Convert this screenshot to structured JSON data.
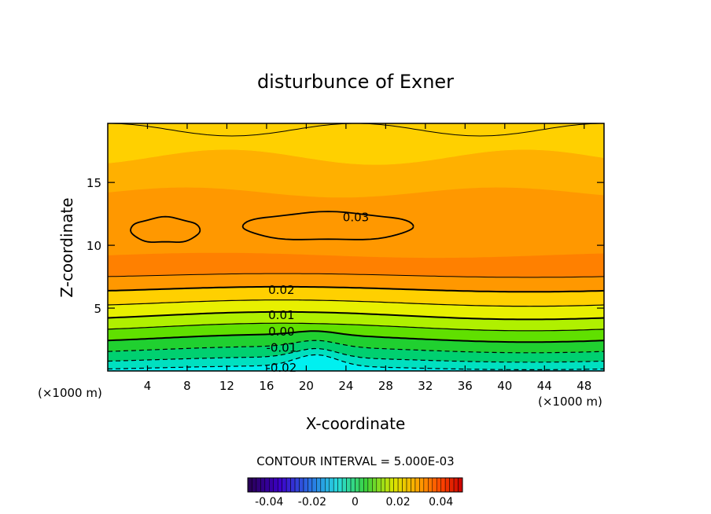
{
  "chart_data": {
    "type": "heatmap",
    "subtype": "filled-contour",
    "title": "disturbunce of Exner",
    "xlabel": "X-coordinate",
    "ylabel": "Z-coordinate",
    "x_unit_left": "(×1000 m)",
    "x_unit_right": "(×1000 m)",
    "xlim": [
      0,
      50
    ],
    "ylim": [
      0,
      19.7
    ],
    "xticks": [
      4,
      8,
      12,
      16,
      20,
      24,
      28,
      32,
      36,
      40,
      44,
      48
    ],
    "xtick_labels": [
      "4",
      "8",
      "12",
      "16",
      "20",
      "24",
      "28",
      "32",
      "36",
      "40",
      "44",
      "48"
    ],
    "yticks": [
      5,
      10,
      15
    ],
    "ytick_labels": [
      "5",
      "10",
      "15"
    ],
    "contour_interval_text": "CONTOUR INTERVAL = 5.000E-03",
    "contour_levels": [
      -0.02,
      -0.015,
      -0.01,
      -0.005,
      0.0,
      0.005,
      0.01,
      0.015,
      0.02,
      0.025,
      0.03
    ],
    "contour_labels": [
      {
        "text": "0.03",
        "x": 25.0,
        "z": 12.3
      },
      {
        "text": "0.02",
        "x": 17.5,
        "z": 6.5
      },
      {
        "text": "0.01",
        "x": 17.5,
        "z": 4.5
      },
      {
        "text": "0.00",
        "x": 17.5,
        "z": 3.2
      },
      {
        "text": "-0.01",
        "x": 17.5,
        "z": 1.9
      },
      {
        "text": "-0.02",
        "x": 17.5,
        "z": 0.3
      }
    ],
    "colorbar": {
      "range": [
        -0.05,
        0.05
      ],
      "tick_values": [
        -0.04,
        -0.02,
        0,
        0.02,
        0.04
      ],
      "tick_labels": [
        "-0.04",
        "-0.02",
        "0",
        "0.02",
        "0.04"
      ]
    },
    "colors": {
      "band_0": "#00f0f0",
      "band_1": "#00e0c0",
      "band_2": "#00d070",
      "band_3": "#20d030",
      "band_4": "#60e000",
      "band_5": "#b0f000",
      "band_6": "#e8f000",
      "band_7": "#ffd000",
      "band_8": "#ffb000",
      "band_9": "#ff9800",
      "band_10": "#ff8000",
      "band_11": "#ff6a00",
      "line": "#000000"
    }
  }
}
